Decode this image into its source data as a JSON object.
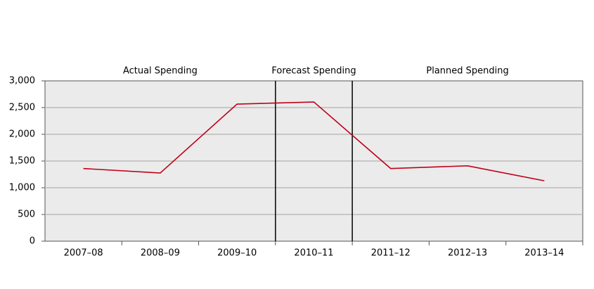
{
  "chart_data": {
    "type": "line",
    "annotations": [
      "Actual Spending",
      "Forecast Spending",
      "Planned Spending"
    ],
    "categories": [
      "2007–08",
      "2008–09",
      "2009–10",
      "2010–11",
      "2011–12",
      "2012–13",
      "2013–14"
    ],
    "values": [
      1360,
      1275,
      2565,
      2605,
      1360,
      1410,
      1130
    ],
    "color": "#c00018",
    "ylim": [
      0,
      3000
    ],
    "yticks": [
      0,
      500,
      {
        "value": 1000,
        "label": "1,000"
      },
      {
        "value": 1500,
        "label": "1,500"
      },
      {
        "value": 2000,
        "label": "2,000"
      },
      {
        "value": 2500,
        "label": "2,500"
      },
      {
        "value": 3000,
        "label": "3,000"
      }
    ],
    "grid": true
  }
}
